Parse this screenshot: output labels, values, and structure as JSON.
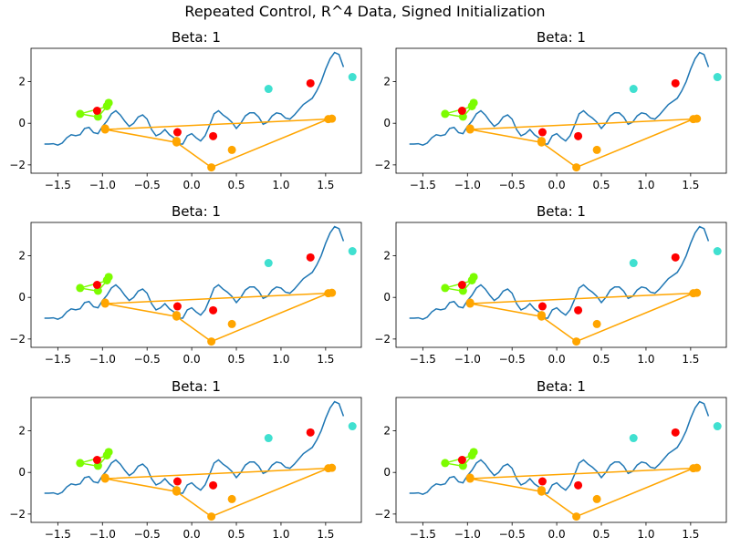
{
  "figure": {
    "suptitle": "Repeated Control, R^4 Data, Signed Initialization"
  },
  "chart_data": [
    {
      "type": "line",
      "title": "Beta: 1",
      "xlabel": "",
      "ylabel": "",
      "xlim": [
        -1.8,
        1.9
      ],
      "ylim": [
        -2.4,
        3.6
      ],
      "x_ticks": [
        -1.5,
        -1.0,
        -0.5,
        0.0,
        0.5,
        1.0,
        1.5
      ],
      "x_tick_labels": [
        "−1.5",
        "−1.0",
        "−0.5",
        "0.0",
        "0.5",
        "1.0",
        "1.5"
      ],
      "y_ticks": [
        -2,
        0,
        2
      ],
      "y_tick_labels": [
        "−2",
        "0",
        "2"
      ],
      "grid": false,
      "colors": {
        "curve": "#1f77b4",
        "orange": "#ffa500",
        "green": "#7cfc00",
        "red": "#ff0000",
        "cyan": "#40e0d0"
      }
    },
    {
      "type": "line",
      "title": "Beta: 1"
    },
    {
      "type": "line",
      "title": "Beta: 1"
    },
    {
      "type": "line",
      "title": "Beta: 1"
    },
    {
      "type": "line",
      "title": "Beta: 1"
    },
    {
      "type": "line",
      "title": "Beta: 1"
    }
  ],
  "series": {
    "curve_x": [
      -1.65,
      -1.6,
      -1.55,
      -1.5,
      -1.45,
      -1.4,
      -1.35,
      -1.3,
      -1.25,
      -1.2,
      -1.15,
      -1.1,
      -1.05,
      -1.0,
      -0.95,
      -0.9,
      -0.85,
      -0.8,
      -0.75,
      -0.7,
      -0.65,
      -0.6,
      -0.55,
      -0.5,
      -0.45,
      -0.4,
      -0.35,
      -0.3,
      -0.25,
      -0.2,
      -0.15,
      -0.1,
      -0.05,
      0.0,
      0.05,
      0.1,
      0.15,
      0.2,
      0.25,
      0.3,
      0.35,
      0.4,
      0.45,
      0.5,
      0.55,
      0.6,
      0.65,
      0.7,
      0.75,
      0.8,
      0.85,
      0.9,
      0.95,
      1.0,
      1.05,
      1.1,
      1.15,
      1.2,
      1.25,
      1.3,
      1.35,
      1.4,
      1.45,
      1.5,
      1.55,
      1.6,
      1.65,
      1.7
    ],
    "curve_y": [
      -1.0,
      -1.0,
      -0.98,
      -1.05,
      -0.95,
      -0.7,
      -0.55,
      -0.6,
      -0.55,
      -0.25,
      -0.2,
      -0.45,
      -0.5,
      -0.15,
      0.1,
      0.45,
      0.6,
      0.4,
      0.1,
      -0.15,
      0.0,
      0.3,
      0.4,
      0.2,
      -0.3,
      -0.6,
      -0.5,
      -0.3,
      -0.55,
      -0.7,
      -1.0,
      -1.0,
      -0.6,
      -0.5,
      -0.7,
      -0.85,
      -0.6,
      -0.1,
      0.45,
      0.6,
      0.4,
      0.25,
      0.05,
      -0.25,
      0.0,
      0.35,
      0.5,
      0.5,
      0.3,
      -0.05,
      0.05,
      0.35,
      0.5,
      0.45,
      0.25,
      0.2,
      0.4,
      0.65,
      0.9,
      1.05,
      1.2,
      1.55,
      2.0,
      2.6,
      3.1,
      3.4,
      3.3,
      2.7
    ],
    "orange_path_x": [
      -0.97,
      -0.17,
      0.22,
      1.53,
      -0.97
    ],
    "orange_path_y": [
      -0.3,
      -0.92,
      -2.12,
      0.2,
      -0.3
    ],
    "orange_points_x": [
      -0.97,
      -0.97,
      -0.17,
      -0.17,
      0.22,
      0.45,
      1.53,
      1.57
    ],
    "orange_points_y": [
      -0.3,
      -0.25,
      -0.92,
      -0.85,
      -2.12,
      -1.28,
      0.2,
      0.22
    ],
    "green_path_x": [
      -1.25,
      -0.95,
      -1.05,
      -1.25
    ],
    "green_path_y": [
      0.45,
      0.8,
      0.3,
      0.45
    ],
    "green_points_x": [
      -1.25,
      -0.93,
      -0.95,
      -1.05
    ],
    "green_points_y": [
      0.45,
      0.98,
      0.82,
      0.32
    ],
    "red_points_x": [
      -1.06,
      -0.16,
      0.24,
      1.33
    ],
    "red_points_y": [
      0.6,
      -0.43,
      -0.62,
      1.92
    ],
    "cyan_points_x": [
      0.86,
      1.8
    ],
    "cyan_points_y": [
      1.65,
      2.22
    ]
  }
}
